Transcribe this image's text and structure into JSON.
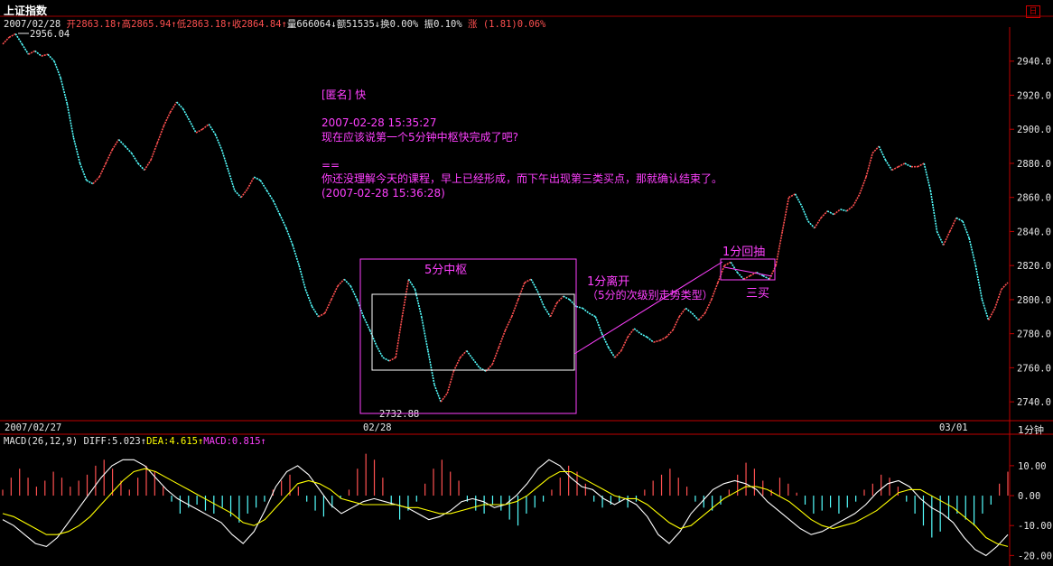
{
  "window": {
    "title": "上证指数",
    "restore_icon_glyph": "日"
  },
  "infobar": {
    "date": "2007/02/28",
    "open_label": "开",
    "open_value": "2863.18",
    "high_label": "高",
    "high_value": "2865.94",
    "low_label": "低",
    "low_value": "2863.18",
    "close_label": "收",
    "close_value": "2864.84",
    "volume_label": "量",
    "volume_value": "666064",
    "amount_label": "额",
    "amount_value": "51535",
    "turnover_label": "换",
    "turnover_value": "0.00%",
    "amplitude_label": "振",
    "amplitude_value": "0.10%",
    "change_label": "涨",
    "change_value": "(1.81)0.06%",
    "arrow_up": "↑",
    "arrow_down": "↓"
  },
  "main_chart": {
    "high_marker": "2956.04",
    "low_marker": "2732.88",
    "x_labels": [
      "2007/02/27",
      "02/28",
      "03/01"
    ],
    "timeframe": "1分钟"
  },
  "comment": {
    "lines": [
      "[匿名] 快",
      "",
      "2007-02-28 15:35:27",
      "现在应该说第一个5分钟中枢快完成了吧?",
      "",
      "==",
      "你还没理解今天的课程，早上已经形成，而下午出现第三类买点，那就确认结束了。",
      "(2007-02-28 15:36:28)"
    ]
  },
  "annotations": {
    "zhongshu": "5分中枢",
    "leave_line1": "1分离开",
    "leave_line2": "（5分的次级别走势类型）",
    "pullback": "1分回抽",
    "third_buy": "三买"
  },
  "macd": {
    "label": "MACD(26,12,9)",
    "diff_label": "DIFF:",
    "diff_value": "5.023",
    "dea_label": "DEA:",
    "dea_value": "4.615",
    "macd_label": "MACD:",
    "macd_value": "0.815",
    "arrow": "↑",
    "y_ticks": [
      "10.00",
      "0.00",
      "-10.00",
      "-20.00"
    ]
  },
  "colors": {
    "up": "#ff5050",
    "down": "#54ffff",
    "annotation": "#ff40ff",
    "diff_line": "#ffffff",
    "dea_line": "#ffff00",
    "axis": "#c00000"
  },
  "chart_data": {
    "type": "line",
    "title": "上证指数",
    "ylim": [
      2730,
      2960
    ],
    "yticks": [
      2740.0,
      2760.0,
      2780.0,
      2800.0,
      2820.0,
      2840.0,
      2860.0,
      2880.0,
      2900.0,
      2920.0,
      2940.0
    ],
    "x_labels": [
      "2007/02/27",
      "02/28",
      "03/01"
    ],
    "price": [
      2950,
      2954,
      2956.04,
      2950,
      2944,
      2946,
      2943,
      2944,
      2940,
      2930,
      2915,
      2895,
      2880,
      2870,
      2868,
      2872,
      2880,
      2888,
      2894,
      2890,
      2886,
      2880,
      2876,
      2882,
      2892,
      2902,
      2910,
      2916,
      2912,
      2905,
      2898,
      2900,
      2903,
      2897,
      2888,
      2876,
      2864,
      2860,
      2865,
      2872,
      2870,
      2864,
      2858,
      2850,
      2842,
      2832,
      2820,
      2806,
      2796,
      2790,
      2792,
      2800,
      2808,
      2812,
      2808,
      2800,
      2790,
      2782,
      2773,
      2766,
      2764,
      2766,
      2790,
      2812,
      2806,
      2790,
      2770,
      2750,
      2740,
      2745,
      2758,
      2766,
      2770,
      2765,
      2760,
      2758,
      2762,
      2772,
      2782,
      2790,
      2800,
      2810,
      2812,
      2805,
      2796,
      2790,
      2798,
      2802,
      2800,
      2796,
      2795,
      2792,
      2790,
      2780,
      2772,
      2766,
      2770,
      2778,
      2783,
      2780,
      2778,
      2775,
      2776,
      2778,
      2782,
      2790,
      2795,
      2792,
      2788,
      2792,
      2800,
      2810,
      2820,
      2822,
      2816,
      2812,
      2814,
      2816,
      2814,
      2812,
      2820,
      2840,
      2860,
      2862,
      2855,
      2846,
      2842,
      2848,
      2852,
      2850,
      2853,
      2852,
      2855,
      2862,
      2872,
      2886,
      2890,
      2882,
      2876,
      2878,
      2880,
      2878,
      2878,
      2880,
      2864,
      2840,
      2832,
      2840,
      2848,
      2846,
      2836,
      2820,
      2800,
      2788,
      2795,
      2806,
      2810
    ],
    "macd_ylim": [
      -22,
      16
    ],
    "macd_yticks": [
      10,
      0,
      -10,
      -20
    ],
    "macd_hist": [
      2,
      6,
      9,
      6,
      3,
      5,
      8,
      6,
      3,
      5,
      7,
      10,
      12,
      9,
      5,
      2,
      6,
      10,
      8,
      3,
      -2,
      -6,
      -4,
      -3,
      -5,
      -6,
      -4,
      -7,
      -9,
      -6,
      -4,
      -2,
      2,
      5,
      7,
      3,
      -2,
      -5,
      -7,
      -4,
      -1,
      2,
      9,
      14,
      12,
      6,
      -3,
      -8,
      -5,
      -2,
      4,
      9,
      12,
      8,
      5,
      -2,
      -5,
      -6,
      -3,
      -5,
      -8,
      -10,
      -6,
      -4,
      -2,
      2,
      6,
      10,
      8,
      4,
      -2,
      -4,
      -3,
      -2,
      -4,
      -2,
      2,
      5,
      7,
      9,
      6,
      3,
      -2,
      -4,
      -5,
      -3,
      2,
      7,
      11,
      9,
      5,
      2,
      6,
      4,
      1,
      -3,
      -6,
      -5,
      -4,
      -6,
      -4,
      -2,
      2,
      4,
      7,
      6,
      3,
      -2,
      -6,
      -10,
      -14,
      -12,
      -8,
      -6,
      -8,
      -10,
      -6,
      -3,
      4,
      8
    ],
    "macd_diff": [
      -8,
      -10,
      -13,
      -16,
      -17,
      -14,
      -9,
      -4,
      1,
      6,
      10,
      12,
      12,
      10,
      6,
      2,
      -1,
      -3,
      -5,
      -7,
      -9,
      -13,
      -16,
      -12,
      -5,
      3,
      8,
      10,
      7,
      2,
      -3,
      -6,
      -4,
      -2,
      -1,
      -2,
      -3,
      -4,
      -6,
      -8,
      -7,
      -5,
      -2,
      -1,
      -2,
      -4,
      -3,
      0,
      4,
      9,
      12,
      10,
      6,
      3,
      2,
      -1,
      -3,
      -1,
      -3,
      -7,
      -13,
      -16,
      -12,
      -6,
      -2,
      2,
      4,
      5,
      4,
      2,
      -2,
      -5,
      -8,
      -11,
      -13,
      -12,
      -10,
      -8,
      -6,
      -3,
      1,
      4,
      5,
      3,
      -1,
      -4,
      -6,
      -9,
      -14,
      -18,
      -20,
      -17,
      -13
    ],
    "macd_dea": [
      -6,
      -7,
      -9,
      -11,
      -13,
      -13,
      -12,
      -10,
      -7,
      -3,
      1,
      5,
      8,
      9,
      8,
      6,
      4,
      2,
      0,
      -2,
      -4,
      -6,
      -9,
      -10,
      -8,
      -4,
      0,
      4,
      5,
      4,
      2,
      -1,
      -2,
      -3,
      -3,
      -3,
      -3,
      -4,
      -4,
      -5,
      -6,
      -6,
      -5,
      -4,
      -3,
      -3,
      -3,
      -2,
      0,
      3,
      6,
      8,
      8,
      6,
      4,
      2,
      0,
      -1,
      -1,
      -3,
      -6,
      -9,
      -11,
      -10,
      -7,
      -4,
      -1,
      1,
      3,
      3,
      2,
      0,
      -2,
      -5,
      -8,
      -10,
      -11,
      -10,
      -9,
      -7,
      -5,
      -2,
      1,
      2,
      2,
      0,
      -2,
      -4,
      -7,
      -10,
      -14,
      -16,
      -17
    ]
  }
}
